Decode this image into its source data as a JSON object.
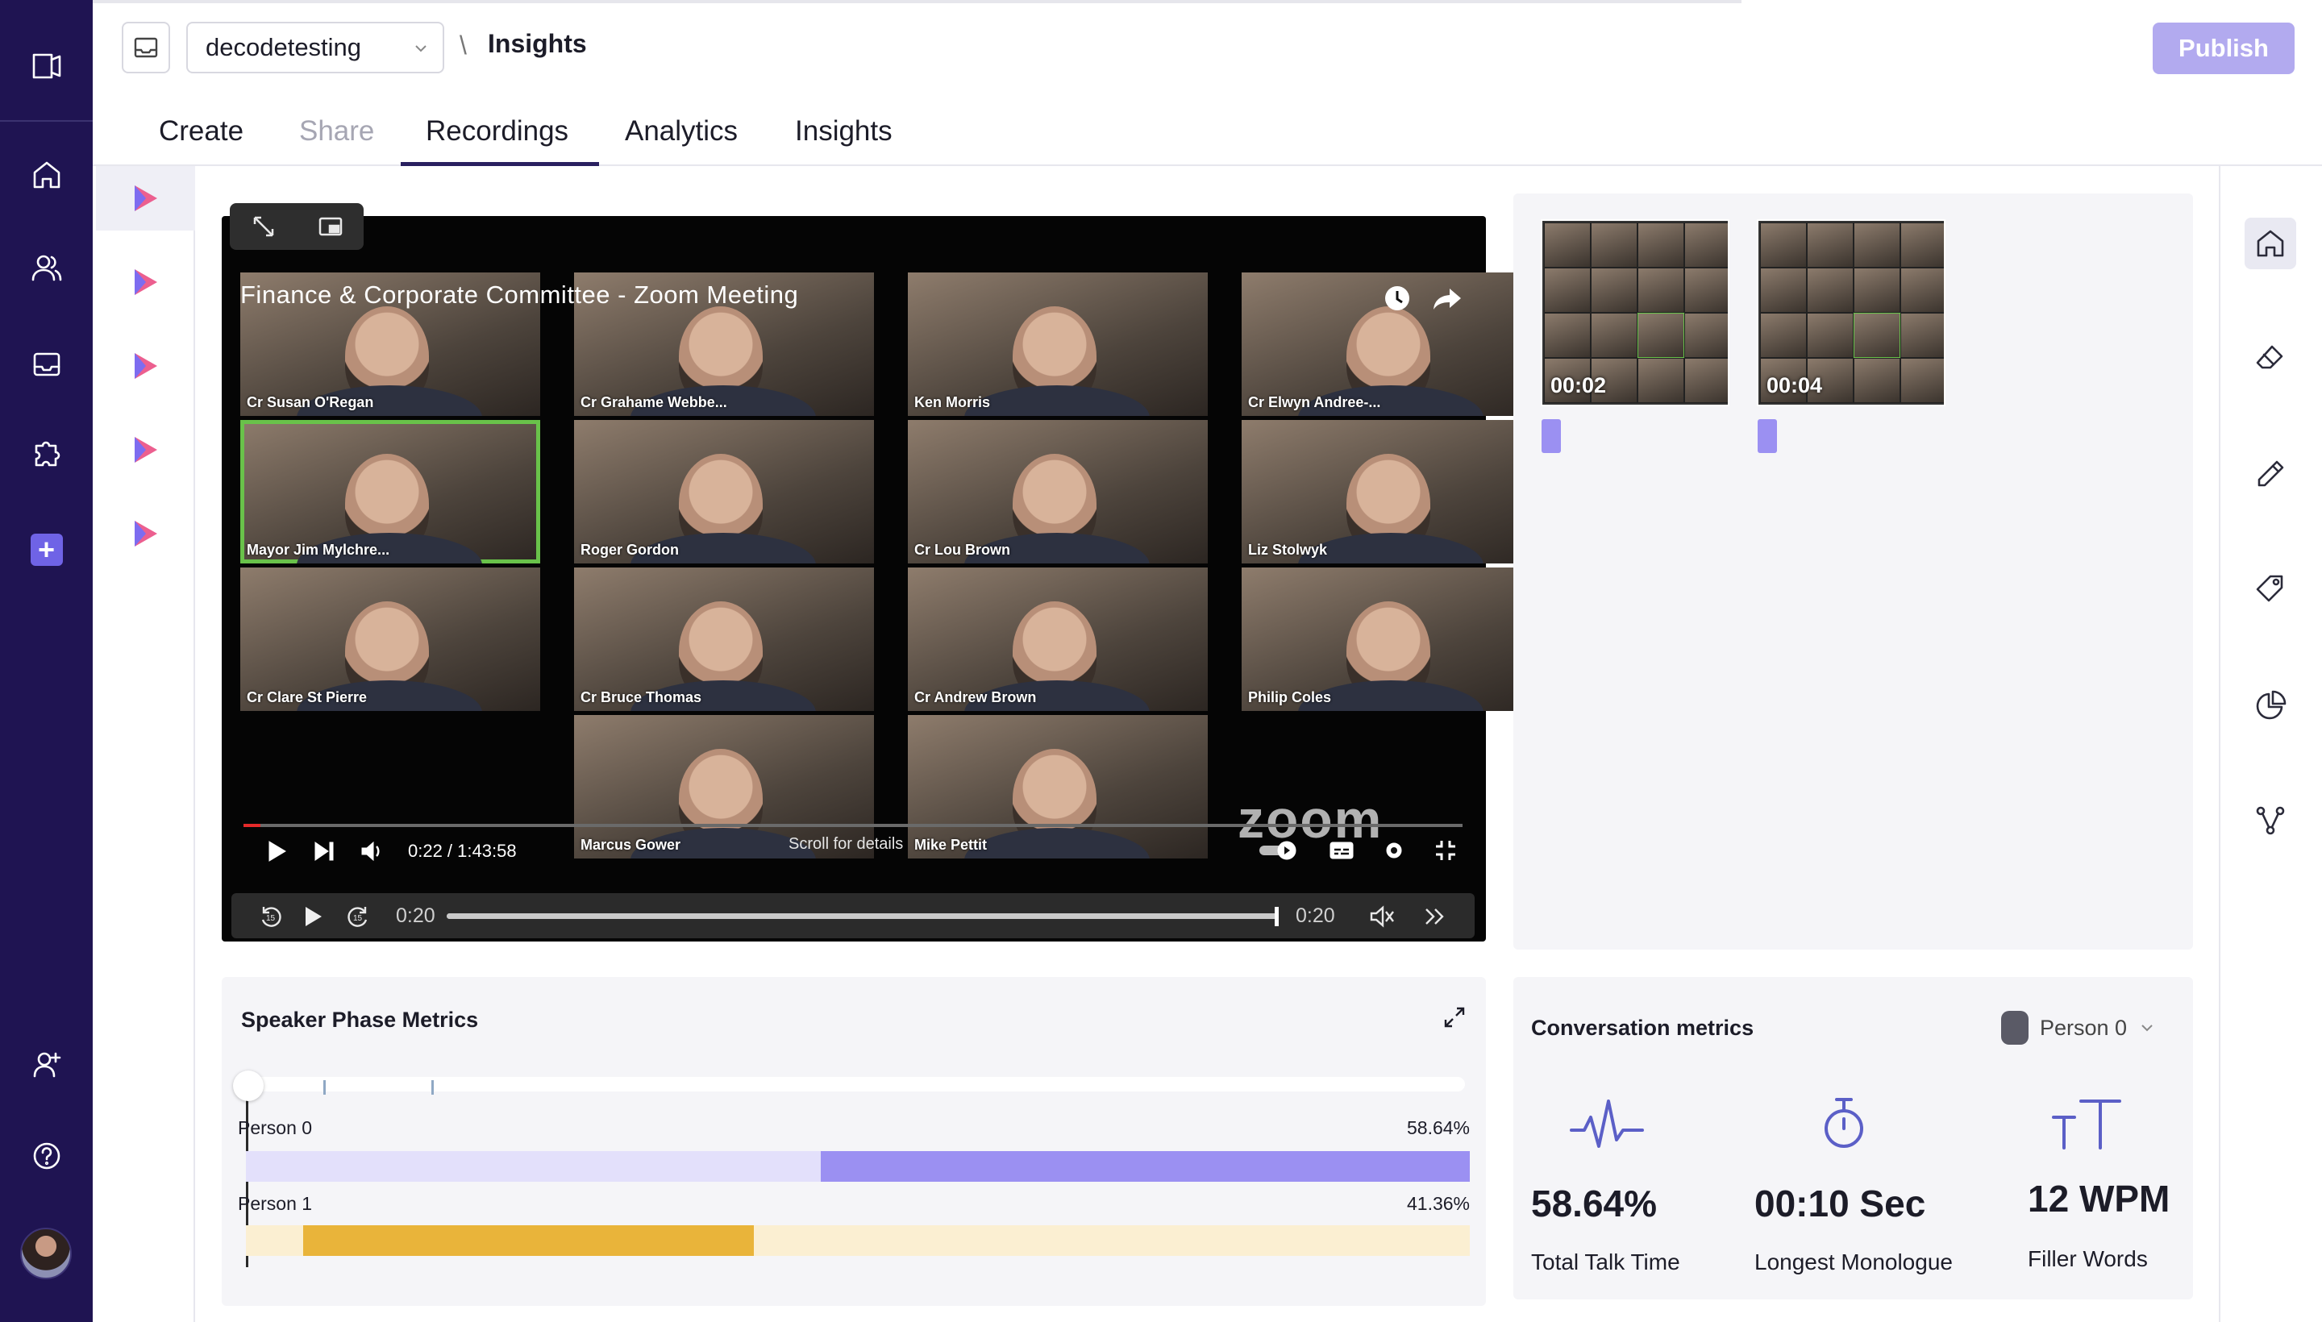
{
  "header": {
    "workspace": "decodetesting",
    "breadcrumb_separator": "\\",
    "page": "Insights",
    "publish_label": "Publish"
  },
  "tabs": [
    {
      "label": "Create",
      "state": "normal"
    },
    {
      "label": "Share",
      "state": "disabled"
    },
    {
      "label": "Recordings",
      "state": "active"
    },
    {
      "label": "Analytics",
      "state": "normal"
    },
    {
      "label": "Insights",
      "state": "normal"
    }
  ],
  "video": {
    "meeting_title": "Finance & Corporate Committee - Zoom Meeting",
    "participants": [
      "Cr Susan O'Regan",
      "Cr Grahame Webbe...",
      "Ken Morris",
      "Cr Elwyn Andree-...",
      "Mayor Jim Mylchre...",
      "Roger Gordon",
      "Cr Lou Brown",
      "Liz Stolwyk",
      "Cr Clare St Pierre",
      "Cr Bruce Thomas",
      "Cr Andrew Brown",
      "Philip Coles",
      "Marcus Gower",
      "Mike Pettit"
    ],
    "active_speaker": "Mayor Jim Mylchre...",
    "embedded_time": "0:22 / 1:43:58",
    "scroll_hint": "Scroll for details",
    "zoom_logo": "zoom",
    "embedded_progress": 0.004
  },
  "player": {
    "current_time": "0:20",
    "end_time": "0:20",
    "progress": 1.0,
    "skip_back": "15",
    "skip_forward": "15"
  },
  "thumbnails": [
    {
      "timestamp": "00:02"
    },
    {
      "timestamp": "00:04"
    }
  ],
  "speaker_phase": {
    "title": "Speaker Phase Metrics",
    "persons": [
      {
        "name": "Person 0",
        "percent": "58.64%",
        "segment_start": 0.47,
        "segment_end": 1.0,
        "fill_color": "#9b90f2",
        "track_color": "#e3e0fb"
      },
      {
        "name": "Person 1",
        "percent": "41.36%",
        "segment_start": 0.047,
        "segment_end": 0.415,
        "fill_color": "#e9b43a",
        "track_color": "#fbefd2"
      }
    ]
  },
  "conversation": {
    "title": "Conversation metrics",
    "selected_person": "Person 0",
    "metrics": [
      {
        "value": "58.64%",
        "label": "Total Talk Time",
        "icon": "pulse-icon"
      },
      {
        "value": "00:10 Sec",
        "label": "Longest Monologue",
        "icon": "stopwatch-icon"
      },
      {
        "value": "12 WPM",
        "label": "Filler Words",
        "icon": "text-size-icon"
      }
    ]
  },
  "colors": {
    "sidebar": "#1f1452",
    "accent": "#6f63e6",
    "publish": "#b2aaef",
    "active_tab_underline": "#2a2060",
    "metric_icon": "#5b5fc7"
  }
}
